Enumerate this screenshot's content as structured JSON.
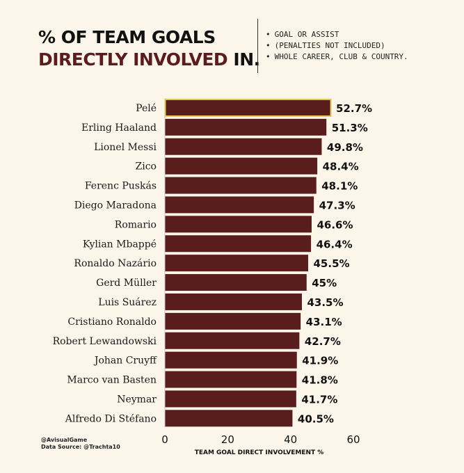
{
  "header": {
    "title_line1": "% OF TEAM GOALS",
    "title_highlight": "DIRECTLY INVOLVED",
    "title_rest": " IN.",
    "notes": [
      "GOAL OR ASSIST",
      "(PENALTIES NOT INCLUDED)",
      "WHOLE CAREER, CLUB & COUNTRY."
    ]
  },
  "credits": {
    "handle": "@AvisualGame",
    "source": "Data Source: @Trachta10"
  },
  "colors": {
    "bar": "#5a1d1d",
    "highlight_border": "#e3c75a",
    "background": "#fbf5ea",
    "title_accent": "#5a1d1d"
  },
  "chart_data": {
    "type": "bar",
    "orientation": "horizontal",
    "title": "% OF TEAM GOALS DIRECTLY INVOLVED IN.",
    "xlabel": "TEAM GOAL DIRECT INVOLVEMENT %",
    "ylabel": "",
    "xlim": [
      0,
      60
    ],
    "xticks": [
      0,
      20,
      40,
      60
    ],
    "grid": false,
    "highlighted_category": "Pelé",
    "categories": [
      "Pelé",
      "Erling Haaland",
      "Lionel Messi",
      "Zico",
      "Ferenc Puskás",
      "Diego Maradona",
      "Romario",
      "Kylian Mbappé",
      "Ronaldo Nazário",
      "Gerd Müller",
      "Luis Suárez",
      "Cristiano Ronaldo",
      "Robert Lewandowski",
      "Johan Cruyff",
      "Marco van Basten",
      "Neymar",
      "Alfredo Di Stéfano"
    ],
    "values": [
      52.7,
      51.3,
      49.8,
      48.4,
      48.1,
      47.3,
      46.6,
      46.4,
      45.5,
      45,
      43.5,
      43.1,
      42.7,
      41.9,
      41.8,
      41.7,
      40.5
    ],
    "value_labels": [
      "52.7%",
      "51.3%",
      "49.8%",
      "48.4%",
      "48.1%",
      "47.3%",
      "46.6%",
      "46.4%",
      "45.5%",
      "45%",
      "43.5%",
      "43.1%",
      "42.7%",
      "41.9%",
      "41.8%",
      "41.7%",
      "40.5%"
    ]
  }
}
